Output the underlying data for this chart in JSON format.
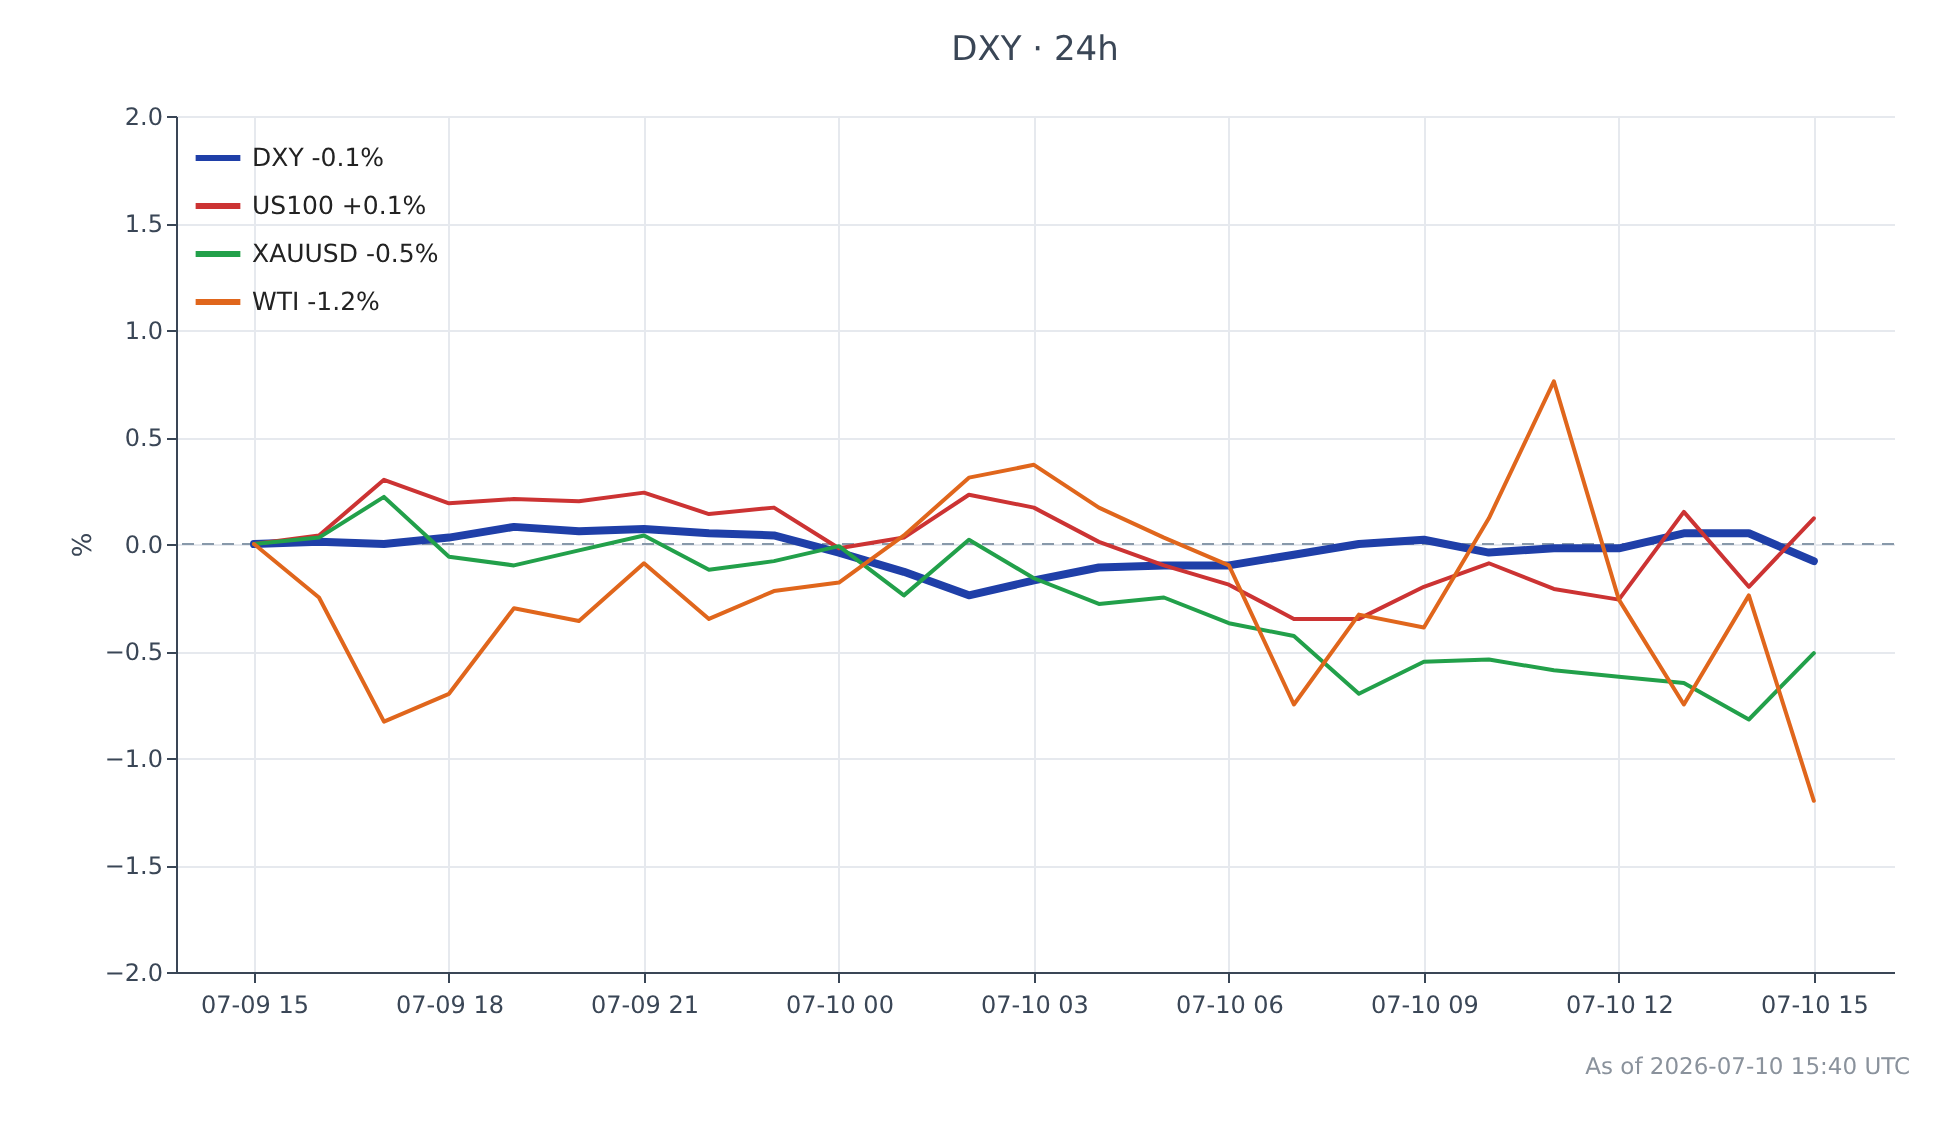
{
  "chart_data": {
    "type": "line",
    "title": "DXY · 24h",
    "ylabel": "%",
    "annotations": [
      "As of 2026-07-10 15:40 UTC"
    ],
    "x": [
      "2026-07-09T15:00",
      "2026-07-09T16:00",
      "2026-07-09T17:00",
      "2026-07-09T18:00",
      "2026-07-09T19:00",
      "2026-07-09T20:00",
      "2026-07-09T21:00",
      "2026-07-09T22:00",
      "2026-07-09T23:00",
      "2026-07-10T00:00",
      "2026-07-10T01:00",
      "2026-07-10T02:00",
      "2026-07-10T03:00",
      "2026-07-10T04:00",
      "2026-07-10T05:00",
      "2026-07-10T06:00",
      "2026-07-10T07:00",
      "2026-07-10T08:00",
      "2026-07-10T09:00",
      "2026-07-10T10:00",
      "2026-07-10T11:00",
      "2026-07-10T12:00",
      "2026-07-10T13:00",
      "2026-07-10T14:00",
      "2026-07-10T15:00"
    ],
    "series": [
      {
        "name": "DXY -0.1%",
        "color": "#1f3fa8",
        "values": [
          0,
          0.01,
          0.0,
          0.03,
          0.08,
          0.06,
          0.07,
          0.05,
          0.04,
          -0.04,
          -0.13,
          -0.24,
          -0.17,
          -0.11,
          -0.1,
          -0.1,
          -0.05,
          0.0,
          0.02,
          -0.04,
          -0.02,
          -0.02,
          0.05,
          0.05,
          -0.08
        ]
      },
      {
        "name": "US100 +0.1%",
        "color": "#cc3333",
        "values": [
          0,
          0.04,
          0.3,
          0.19,
          0.21,
          0.2,
          0.24,
          0.14,
          0.17,
          -0.02,
          0.03,
          0.23,
          0.17,
          0.01,
          -0.1,
          -0.19,
          -0.35,
          -0.35,
          -0.2,
          -0.09,
          -0.21,
          -0.26,
          0.15,
          -0.2,
          0.12
        ]
      },
      {
        "name": "XAUUSD -0.5%",
        "color": "#22a04a",
        "values": [
          0,
          0.03,
          0.22,
          -0.06,
          -0.1,
          -0.03,
          0.04,
          -0.12,
          -0.08,
          -0.01,
          -0.24,
          0.02,
          -0.16,
          -0.28,
          -0.25,
          -0.37,
          -0.43,
          -0.7,
          -0.55,
          -0.54,
          -0.59,
          -0.62,
          -0.65,
          -0.82,
          -0.51
        ]
      },
      {
        "name": "WTI -1.2%",
        "color": "#e0661c",
        "values": [
          0,
          -0.25,
          -0.83,
          -0.7,
          -0.3,
          -0.36,
          -0.09,
          -0.35,
          -0.22,
          -0.18,
          0.04,
          0.31,
          0.37,
          0.17,
          0.03,
          -0.1,
          -0.75,
          -0.33,
          -0.39,
          0.12,
          0.76,
          -0.26,
          -0.75,
          -0.24,
          -1.2
        ]
      }
    ],
    "xlim": [
      "2026-07-09T13:48",
      "2026-07-10T16:14"
    ],
    "xticks": [
      {
        "value": "2026-07-09T15:00",
        "label": "07-09 15"
      },
      {
        "value": "2026-07-09T18:00",
        "label": "07-09 18"
      },
      {
        "value": "2026-07-09T21:00",
        "label": "07-09 21"
      },
      {
        "value": "2026-07-10T00:00",
        "label": "07-10 00"
      },
      {
        "value": "2026-07-10T03:00",
        "label": "07-10 03"
      },
      {
        "value": "2026-07-10T06:00",
        "label": "07-10 06"
      },
      {
        "value": "2026-07-10T09:00",
        "label": "07-10 09"
      },
      {
        "value": "2026-07-10T12:00",
        "label": "07-10 12"
      },
      {
        "value": "2026-07-10T15:00",
        "label": "07-10 15"
      }
    ],
    "ylim": [
      -2,
      2
    ],
    "yticks": [
      {
        "value": -2,
        "label": "−2.0"
      },
      {
        "value": -1.5,
        "label": "−1.5"
      },
      {
        "value": -1,
        "label": "−1.0"
      },
      {
        "value": -0.5,
        "label": "−0.5"
      },
      {
        "value": 0,
        "label": "0.0"
      },
      {
        "value": 0.5,
        "label": "0.5"
      },
      {
        "value": 1,
        "label": "1.0"
      },
      {
        "value": 1.5,
        "label": "1.5"
      },
      {
        "value": 2,
        "label": "2.0"
      }
    ],
    "ref_lines": [
      {
        "axis": "y",
        "value": 0,
        "color": "#8899aa",
        "line_style": "dashed"
      }
    ],
    "grid": true,
    "legend": "top left",
    "line_style": "solid",
    "marker": "none"
  }
}
